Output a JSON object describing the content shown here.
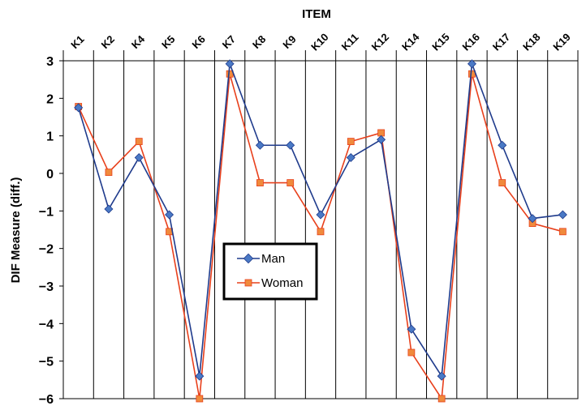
{
  "chart_data": {
    "type": "line",
    "title": "ITEM",
    "xlabel": "ITEM",
    "ylabel": "DIF Measure (diff.)",
    "categories": [
      "K1",
      "K2",
      "K4",
      "K5",
      "K6",
      "K7",
      "K8",
      "K9",
      "K10",
      "K11",
      "K12",
      "K14",
      "K15",
      "K16",
      "K17",
      "K18",
      "K19"
    ],
    "ylim": [
      -6,
      3
    ],
    "yticks": [
      "3",
      "2",
      "1",
      "0",
      "−1",
      "−2",
      "−3",
      "−4",
      "−5",
      "−6"
    ],
    "grid": "vertical",
    "x_axis_position": "top",
    "legend_position": "center",
    "series": [
      {
        "name": "Man",
        "color": "#1f3b8c",
        "marker": "diamond",
        "values": [
          1.75,
          -0.95,
          0.42,
          -1.1,
          -5.4,
          2.92,
          0.75,
          0.75,
          -1.1,
          0.42,
          0.9,
          -4.15,
          -5.4,
          2.92,
          0.75,
          -1.2,
          -1.1
        ]
      },
      {
        "name": "Woman",
        "color": "#e8401c",
        "marker": "square",
        "values": [
          1.78,
          0.03,
          0.85,
          -1.55,
          -6.0,
          2.65,
          -0.25,
          -0.25,
          -1.55,
          0.85,
          1.08,
          -4.77,
          -6.0,
          2.65,
          -0.25,
          -1.33,
          -1.55
        ]
      }
    ]
  }
}
